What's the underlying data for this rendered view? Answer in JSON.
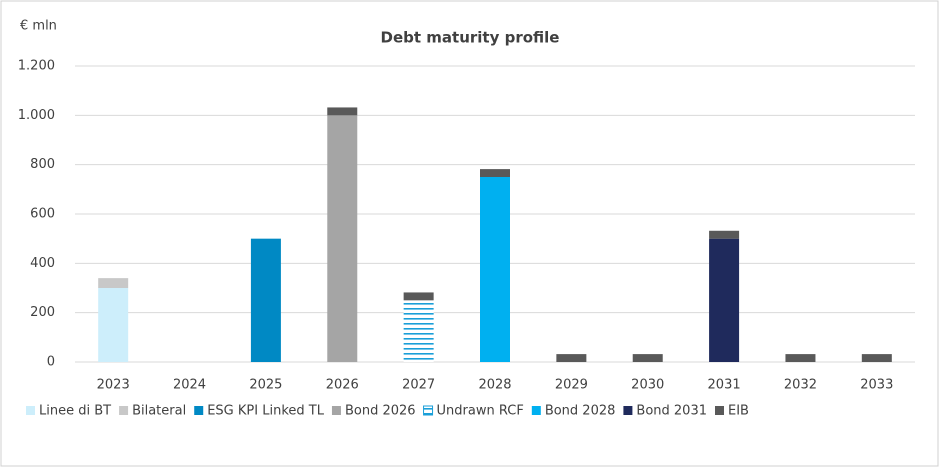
{
  "chart_data": {
    "type": "stacked-bar",
    "title": "Debt maturity profile",
    "y_label": "€ mln",
    "categories": [
      "2023",
      "2024",
      "2025",
      "2026",
      "2027",
      "2028",
      "2029",
      "2030",
      "2031",
      "2032",
      "2033"
    ],
    "series": [
      {
        "name": "Linee di BT",
        "color": "#cdeefb",
        "values": [
          300,
          null,
          null,
          null,
          null,
          null,
          null,
          null,
          null,
          null,
          null
        ]
      },
      {
        "name": "Bilateral",
        "color": "#c8c8c8",
        "values": [
          40,
          null,
          null,
          null,
          null,
          null,
          null,
          null,
          null,
          null,
          null
        ]
      },
      {
        "name": "ESG KPI Linked TL",
        "color": "#0089c4",
        "values": [
          null,
          null,
          500,
          null,
          null,
          null,
          null,
          null,
          null,
          null,
          null
        ]
      },
      {
        "name": "Bond 2026",
        "color": "#a5a5a5",
        "values": [
          null,
          null,
          null,
          1000,
          null,
          null,
          null,
          null,
          null,
          null,
          null
        ]
      },
      {
        "name": "Undrawn RCF",
        "color": "#1a9fd8",
        "hatch": true,
        "values": [
          null,
          null,
          null,
          null,
          250,
          null,
          null,
          null,
          null,
          null,
          null
        ]
      },
      {
        "name": "Bond 2028",
        "color": "#00b0f0",
        "values": [
          null,
          null,
          null,
          null,
          null,
          750,
          null,
          null,
          null,
          null,
          null
        ]
      },
      {
        "name": "Bond 2031",
        "color": "#1f2a5c",
        "values": [
          null,
          null,
          null,
          null,
          null,
          null,
          null,
          null,
          500,
          null,
          null
        ]
      },
      {
        "name": "EIB",
        "color": "#595959",
        "values": [
          null,
          null,
          null,
          32,
          32,
          32,
          32,
          32,
          32,
          32,
          32
        ]
      }
    ],
    "ylim": [
      0,
      1200
    ],
    "yticks": [
      0,
      200,
      400,
      600,
      800,
      {
        "value": 1000,
        "label": "1.000"
      },
      {
        "value": 1200,
        "label": "1.200"
      }
    ],
    "grid": true
  }
}
